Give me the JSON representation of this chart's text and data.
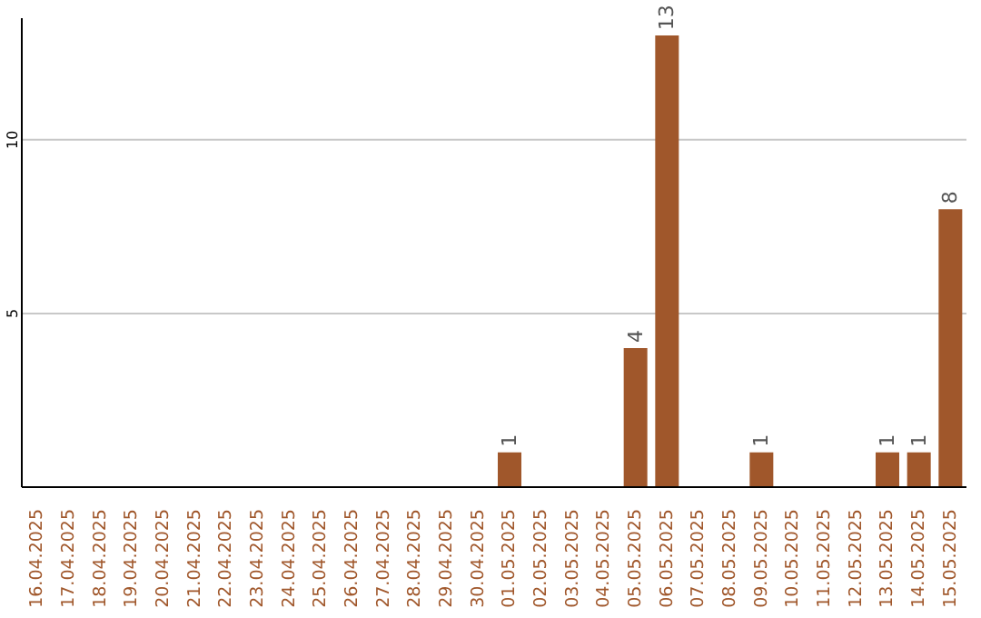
{
  "chart_data": {
    "type": "bar",
    "categories": [
      "16.04.2025",
      "17.04.2025",
      "18.04.2025",
      "19.04.2025",
      "20.04.2025",
      "21.04.2025",
      "22.04.2025",
      "23.04.2025",
      "24.04.2025",
      "25.04.2025",
      "26.04.2025",
      "27.04.2025",
      "28.04.2025",
      "29.04.2025",
      "30.04.2025",
      "01.05.2025",
      "02.05.2025",
      "03.05.2025",
      "04.05.2025",
      "05.05.2025",
      "06.05.2025",
      "07.05.2025",
      "08.05.2025",
      "09.05.2025",
      "10.05.2025",
      "11.05.2025",
      "12.05.2025",
      "13.05.2025",
      "14.05.2025",
      "15.05.2025"
    ],
    "values": [
      0,
      0,
      0,
      0,
      0,
      0,
      0,
      0,
      0,
      0,
      0,
      0,
      0,
      0,
      0,
      1,
      0,
      0,
      0,
      4,
      13,
      0,
      0,
      1,
      0,
      0,
      0,
      1,
      1,
      8
    ],
    "value_labels": [
      null,
      null,
      null,
      null,
      null,
      null,
      null,
      null,
      null,
      null,
      null,
      null,
      null,
      null,
      null,
      "1",
      null,
      null,
      null,
      "4",
      "13",
      null,
      null,
      "1",
      null,
      null,
      null,
      "1",
      "1",
      "8"
    ],
    "color": "#a0572b",
    "ylim": [
      0,
      13.5
    ],
    "yticks": [
      5,
      10
    ],
    "grid": "y"
  }
}
